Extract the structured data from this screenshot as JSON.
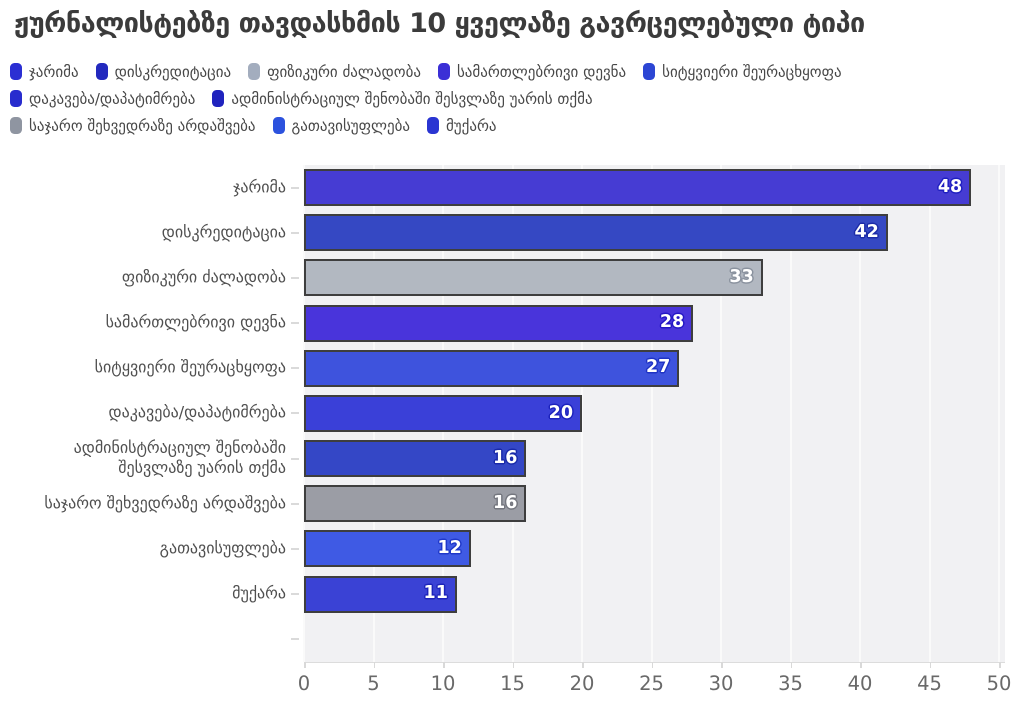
{
  "title": "ჟურნალისტებზე თავდასხმის 10 ყველაზე გავრცელებული ტიპი",
  "legend": {
    "rows": [
      [
        {
          "label": "ჯარიმა",
          "color": "#2B2FD3"
        },
        {
          "label": "დისკრედიტაცია",
          "color": "#2329BE"
        },
        {
          "label": "ფიზიკური ძალადობა",
          "color": "#A3ADBE"
        },
        {
          "label": "სამართლებრივი დევნა",
          "color": "#3B2FD6"
        },
        {
          "label": "სიტყვიერი შეურაცხყოფა",
          "color": "#2C46D4"
        }
      ],
      [
        {
          "label": "დაკავება/დაპატიმრება",
          "color": "#282CCE"
        },
        {
          "label": "ადმინისტრაციულ შენობაში შესვლაზე უარის თქმა",
          "color": "#2023BE"
        }
      ],
      [
        {
          "label": "საჯარო შეხვედრაზე არდაშვება",
          "color": "#8F95A1"
        },
        {
          "label": "გათავისუფლება",
          "color": "#2C52DE"
        },
        {
          "label": "მუქარა",
          "color": "#2A35D2"
        }
      ]
    ]
  },
  "chart_data": {
    "type": "bar",
    "orientation": "horizontal",
    "title": "ჟურნალისტებზე თავდასხმის 10 ყველაზე გავრცელებული ტიპი",
    "categories": [
      "ჯარიმა",
      "დისკრედიტაცია",
      "ფიზიკური ძალადობა",
      "სამართლებრივი დევნა",
      "სიტყვიერი შეურაცხყოფა",
      "დაკავება/დაპატიმრება",
      "ადმინისტრაციულ შენობაში შესვლაზე უარის თქმა",
      "საჯარო შეხვედრაზე არდაშვება",
      "გათავისუფლება",
      "მუქარა"
    ],
    "values": [
      48,
      42,
      33,
      28,
      27,
      20,
      16,
      16,
      12,
      11
    ],
    "bar_colors": [
      "#463CD3",
      "#3548C3",
      "#B2B8C1",
      "#4934DB",
      "#3E53DD",
      "#3A40D8",
      "#3447C6",
      "#9B9DA5",
      "#3F5AE4",
      "#3A42D5"
    ],
    "value_label_halos": [
      "#1F1FC0",
      "#1C2BA8",
      "#8A929E",
      "#2417C4",
      "#1F33C4",
      "#1C22BD",
      "#1A2AA9",
      "#75777F",
      "#2038C9",
      "#1D24BA"
    ],
    "xlim": [
      0,
      50
    ],
    "x_ticks": [
      0,
      5,
      10,
      15,
      20,
      25,
      30,
      35,
      40,
      45,
      50
    ],
    "grid": true,
    "legend_position": "top",
    "empty_trailing_category": true,
    "colors": {
      "plot_bg": "#f1f1f3",
      "gridline": "#fafafa",
      "bar_border": "#3e3e3e",
      "axis_line": "#dcdcdc",
      "x_tick_label": "#696969",
      "category_label": "#4f4f4f",
      "title": "#3b3b3b",
      "legend_label": "#474747",
      "value_label": "#ffffff"
    }
  }
}
